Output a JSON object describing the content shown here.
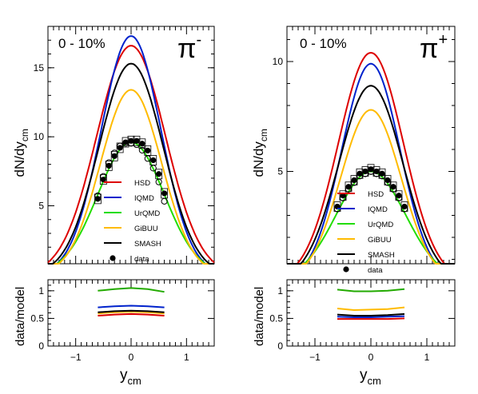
{
  "chart_data": [
    {
      "type": "line",
      "panel": "top-left",
      "label": "0 - 10%",
      "particle": "π",
      "particle_charge": "-",
      "ylabel": "dN/dy",
      "ylabel_sub": "cm",
      "xlim": [
        -1.5,
        1.5
      ],
      "ylim": [
        0.8,
        18
      ],
      "yticks": [
        5,
        10,
        15
      ],
      "xticks": [
        -1,
        0,
        1
      ],
      "legend_position": "center-left",
      "series": [
        {
          "name": "HSD",
          "color": "#dd0000",
          "amplitude": 16.6,
          "sigma": 0.62,
          "x": [
            -1.5,
            -1.25,
            -1.0,
            -0.75,
            -0.5,
            -0.25,
            0.0,
            0.25,
            0.5,
            0.75,
            1.0,
            1.25,
            1.5
          ],
          "values": [
            1.6,
            3.0,
            5.1,
            8.0,
            11.4,
            14.7,
            16.6,
            14.7,
            11.4,
            8.0,
            5.1,
            3.0,
            1.6
          ]
        },
        {
          "name": "IQMD",
          "color": "#0022cc",
          "amplitude": 17.3,
          "sigma": 0.54,
          "x": [
            -1.5,
            -1.25,
            -1.0,
            -0.75,
            -0.5,
            -0.25,
            0.0,
            0.25,
            0.5,
            0.75,
            1.0,
            1.25,
            1.5
          ],
          "values": [
            0.8,
            1.8,
            3.6,
            6.5,
            10.5,
            14.8,
            17.3,
            14.8,
            10.5,
            6.5,
            3.6,
            1.8,
            0.8
          ]
        },
        {
          "name": "UrQMD",
          "color": "#22dd00",
          "amplitude": 9.6,
          "sigma": 0.6,
          "x": [
            -1.5,
            -1.25,
            -1.0,
            -0.75,
            -0.5,
            -0.25,
            0.0,
            0.25,
            0.5,
            0.75,
            1.0,
            1.25,
            1.5
          ],
          "values": [
            0.8,
            1.7,
            2.9,
            4.6,
            6.7,
            8.6,
            9.6,
            8.6,
            6.7,
            4.6,
            2.9,
            1.7,
            0.8
          ]
        },
        {
          "name": "GiBUU",
          "color": "#ffbb00",
          "amplitude": 13.4,
          "sigma": 0.55,
          "x": [
            -1.5,
            -1.25,
            -1.0,
            -0.75,
            -0.5,
            -0.25,
            0.0,
            0.25,
            0.5,
            0.75,
            1.0,
            1.25,
            1.5
          ],
          "values": [
            0.9,
            2.0,
            3.6,
            5.9,
            8.8,
            11.6,
            13.4,
            11.6,
            8.8,
            5.9,
            3.6,
            2.0,
            0.9
          ]
        },
        {
          "name": "SMASH",
          "color": "#000000",
          "amplitude": 15.3,
          "sigma": 0.58,
          "x": [
            -1.5,
            -1.25,
            -1.0,
            -0.75,
            -0.5,
            -0.25,
            0.0,
            0.25,
            0.5,
            0.75,
            1.0,
            1.25,
            1.5
          ],
          "values": [
            1.0,
            2.3,
            4.2,
            7.0,
            10.4,
            13.6,
            15.3,
            13.6,
            10.4,
            7.0,
            4.2,
            2.3,
            1.0
          ]
        }
      ],
      "data_label": "data",
      "data_points": {
        "x": [
          -0.6,
          -0.5,
          -0.4,
          -0.3,
          -0.2,
          -0.1,
          0.0,
          0.1,
          0.2,
          0.3,
          0.4,
          0.5,
          0.6
        ],
        "y": [
          5.5,
          6.9,
          7.9,
          8.6,
          9.2,
          9.6,
          9.7,
          9.7,
          9.5,
          9.0,
          8.3,
          7.3,
          5.9
        ]
      },
      "ratio": {
        "ylabel": "data/model",
        "ylim": [
          0,
          1.2
        ],
        "yticks": [
          0,
          0.5,
          1
        ],
        "xlabel": "y",
        "xlabel_sub": "cm",
        "x": [
          -0.6,
          -0.3,
          0.0,
          0.3,
          0.6
        ],
        "series": [
          {
            "name": "HSD",
            "color": "#dd0000",
            "values": [
              0.55,
              0.57,
              0.58,
              0.57,
              0.55
            ]
          },
          {
            "name": "IQMD",
            "color": "#0022cc",
            "values": [
              0.7,
              0.72,
              0.73,
              0.72,
              0.7
            ]
          },
          {
            "name": "UrQMD",
            "color": "#22aa00",
            "values": [
              1.0,
              1.03,
              1.05,
              1.03,
              0.98
            ]
          },
          {
            "name": "GiBUU",
            "color": "#ffbb00",
            "values": [
              0.59,
              0.61,
              0.62,
              0.61,
              0.59
            ]
          },
          {
            "name": "SMASH",
            "color": "#000000",
            "values": [
              0.61,
              0.63,
              0.64,
              0.63,
              0.61
            ]
          }
        ]
      }
    },
    {
      "type": "line",
      "panel": "top-right",
      "label": "0 - 10%",
      "particle": "π",
      "particle_charge": "+",
      "ylabel": "dN/dy",
      "ylabel_sub": "cm",
      "xlim": [
        -1.5,
        1.5
      ],
      "ylim": [
        0.8,
        11.6
      ],
      "yticks": [
        5,
        10
      ],
      "xticks": [
        -1,
        0,
        1
      ],
      "legend_position": "center-left",
      "series": [
        {
          "name": "HSD",
          "color": "#dd0000",
          "amplitude": 10.4,
          "sigma": 0.58,
          "x": [
            -1.5,
            -1.25,
            -1.0,
            -0.75,
            -0.5,
            -0.25,
            0.0,
            0.25,
            0.5,
            0.75,
            1.0,
            1.25,
            1.5
          ],
          "values": [
            1.3,
            2.2,
            3.6,
            5.5,
            7.6,
            9.4,
            10.4,
            9.4,
            7.6,
            5.5,
            3.6,
            2.2,
            1.3
          ]
        },
        {
          "name": "IQMD",
          "color": "#0022cc",
          "amplitude": 9.9,
          "sigma": 0.52,
          "x": [
            -1.5,
            -1.25,
            -1.0,
            -0.75,
            -0.5,
            -0.25,
            0.0,
            0.25,
            0.5,
            0.75,
            1.0,
            1.25,
            1.5
          ],
          "values": [
            0.9,
            1.7,
            2.9,
            4.6,
            6.7,
            8.6,
            9.9,
            8.6,
            6.7,
            4.6,
            2.9,
            1.7,
            0.9
          ]
        },
        {
          "name": "UrQMD",
          "color": "#22dd00",
          "amplitude": 5.0,
          "sigma": 0.62,
          "x": [
            -1.5,
            -1.25,
            -1.0,
            -0.75,
            -0.5,
            -0.25,
            0.0,
            0.25,
            0.5,
            0.75,
            1.0,
            1.25,
            1.5
          ],
          "values": [
            0.8,
            1.3,
            2.0,
            2.9,
            3.9,
            4.7,
            5.0,
            4.7,
            3.9,
            2.9,
            2.0,
            1.3,
            0.8
          ]
        },
        {
          "name": "GiBUU",
          "color": "#ffbb00",
          "amplitude": 7.8,
          "sigma": 0.54,
          "x": [
            -1.5,
            -1.25,
            -1.0,
            -0.75,
            -0.5,
            -0.25,
            0.0,
            0.25,
            0.5,
            0.75,
            1.0,
            1.25,
            1.5
          ],
          "values": [
            0.9,
            1.6,
            2.6,
            3.9,
            5.5,
            6.9,
            7.8,
            6.9,
            5.5,
            3.9,
            2.6,
            1.6,
            0.9
          ]
        },
        {
          "name": "SMASH",
          "color": "#000000",
          "amplitude": 8.9,
          "sigma": 0.57,
          "x": [
            -1.5,
            -1.25,
            -1.0,
            -0.75,
            -0.5,
            -0.25,
            0.0,
            0.25,
            0.5,
            0.75,
            1.0,
            1.25,
            1.5
          ],
          "values": [
            1.0,
            1.8,
            2.9,
            4.5,
            6.4,
            8.0,
            8.9,
            8.0,
            6.4,
            4.5,
            2.9,
            1.8,
            1.0
          ]
        }
      ],
      "data_label": "data",
      "data_points": {
        "x": [
          -0.6,
          -0.5,
          -0.4,
          -0.3,
          -0.2,
          -0.1,
          0.0,
          0.1,
          0.2,
          0.3,
          0.4,
          0.5,
          0.6
        ],
        "y": [
          3.4,
          3.9,
          4.3,
          4.6,
          4.9,
          5.0,
          5.1,
          5.0,
          4.9,
          4.6,
          4.3,
          3.9,
          3.4
        ]
      },
      "ratio": {
        "ylabel": "data/model",
        "ylim": [
          0,
          1.2
        ],
        "yticks": [
          0,
          0.5,
          1
        ],
        "xlabel": "y",
        "xlabel_sub": "cm",
        "x": [
          -0.6,
          -0.3,
          0.0,
          0.3,
          0.6
        ],
        "series": [
          {
            "name": "HSD",
            "color": "#dd0000",
            "values": [
              0.49,
              0.49,
              0.49,
              0.49,
              0.5
            ]
          },
          {
            "name": "IQMD",
            "color": "#0022cc",
            "values": [
              0.53,
              0.52,
              0.52,
              0.53,
              0.54
            ]
          },
          {
            "name": "UrQMD",
            "color": "#22aa00",
            "values": [
              1.02,
              0.99,
              0.99,
              1.0,
              1.03
            ]
          },
          {
            "name": "GiBUU",
            "color": "#ffbb00",
            "values": [
              0.68,
              0.65,
              0.66,
              0.67,
              0.7
            ]
          },
          {
            "name": "SMASH",
            "color": "#000000",
            "values": [
              0.57,
              0.55,
              0.55,
              0.56,
              0.58
            ]
          }
        ]
      }
    }
  ]
}
